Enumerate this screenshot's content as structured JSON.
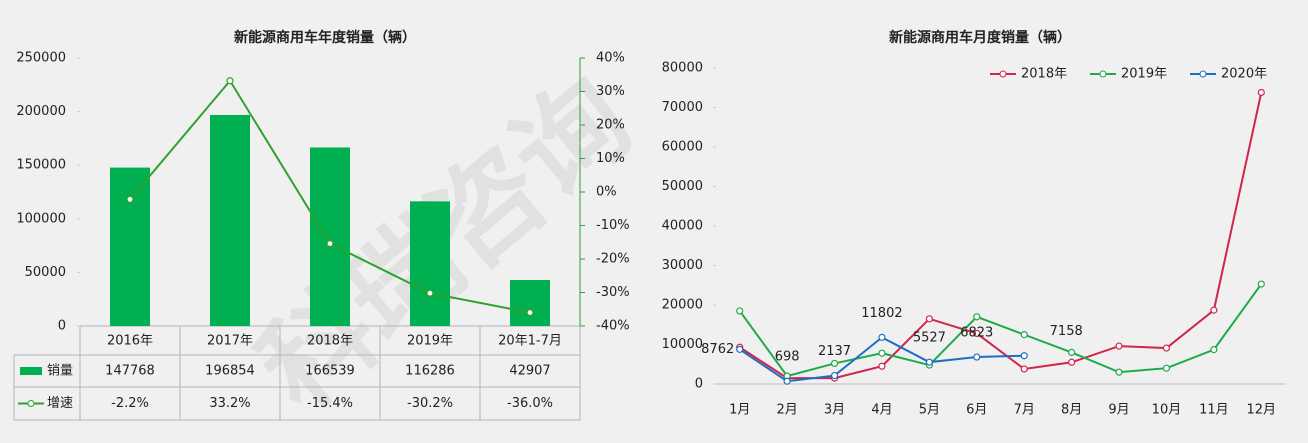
{
  "watermark": "科瑞咨询",
  "chart_data": [
    {
      "type": "combo",
      "title": "新能源商用车年度销量（辆）",
      "categories": [
        "2016年",
        "2017年",
        "2018年",
        "2019年",
        "20年1-7月"
      ],
      "series": [
        {
          "name": "销量",
          "mark": "bar",
          "color": "#00b050",
          "values": [
            147768,
            196854,
            166539,
            116286,
            42907
          ]
        },
        {
          "name": "增速",
          "mark": "line",
          "axis": "y2",
          "color": "#2ea12e",
          "values": [
            -2.2,
            33.2,
            -15.4,
            -30.2,
            -36.0
          ],
          "value_labels": [
            "-2.2%",
            "33.2%",
            "-15.4%",
            "-30.2%",
            "-36.0%"
          ]
        }
      ],
      "ylim": [
        0,
        250000
      ],
      "yticks": [
        0,
        50000,
        100000,
        150000,
        200000,
        250000
      ],
      "y2lim": [
        -40,
        40
      ],
      "y2ticks": [
        {
          "value": -40,
          "label": "-40%"
        },
        {
          "value": -30,
          "label": "-30%"
        },
        {
          "value": -20,
          "label": "-20%"
        },
        {
          "value": -10,
          "label": "-10%"
        },
        {
          "value": 0,
          "label": "0%"
        },
        {
          "value": 10,
          "label": "10%"
        },
        {
          "value": 20,
          "label": "20%"
        },
        {
          "value": 30,
          "label": "30%"
        },
        {
          "value": 40,
          "label": "40%"
        }
      ],
      "data_table": true
    },
    {
      "type": "line",
      "title": "新能源商用车月度销量（辆）",
      "categories": [
        "1月",
        "2月",
        "3月",
        "4月",
        "5月",
        "6月",
        "7月",
        "8月",
        "9月",
        "10月",
        "11月",
        "12月"
      ],
      "series": [
        {
          "name": "2018年",
          "color": "#d0254c",
          "values": [
            9300,
            1500,
            1500,
            4500,
            16500,
            12800,
            3800,
            5500,
            9600,
            9100,
            18700,
            73800
          ]
        },
        {
          "name": "2019年",
          "color": "#1faa4a",
          "values": [
            18500,
            2000,
            5200,
            7800,
            4800,
            17000,
            12500,
            8000,
            3000,
            4000,
            8700,
            25300
          ]
        },
        {
          "name": "2020年",
          "color": "#1f6fc0",
          "values": [
            8762,
            698,
            2137,
            11802,
            5527,
            6823,
            7158,
            null,
            null,
            null,
            null,
            null
          ],
          "data_labels": true
        }
      ],
      "ylim": [
        0,
        80000
      ],
      "yticks": [
        0,
        10000,
        20000,
        30000,
        40000,
        50000,
        60000,
        70000,
        80000
      ],
      "legend": "top-right"
    }
  ]
}
